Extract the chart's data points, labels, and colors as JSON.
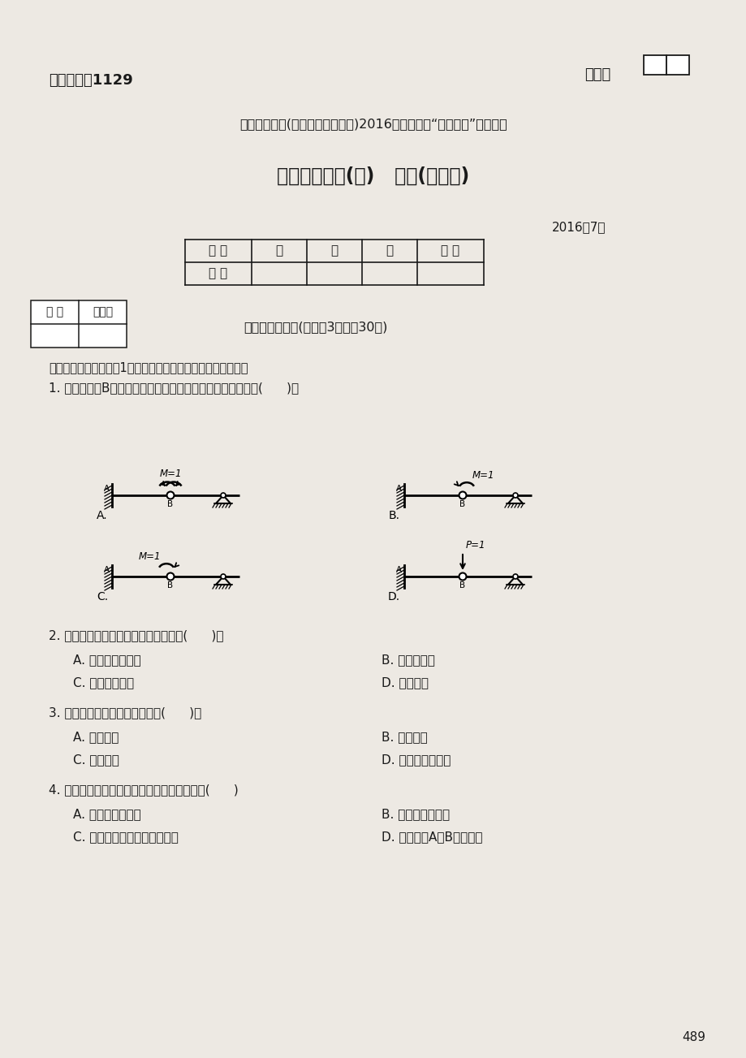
{
  "bg_color": "#ede9e3",
  "text_color": "#1a1a1a",
  "exam_code": "试卷代号：1129",
  "seat_label": "座位号",
  "header_line": "国家开放大学(中央广播电视大学)2016年春季学期“开放本科”期末考试",
  "title": "土木工程力学(本)   试题(半开卷)",
  "date": "2016年7月",
  "table_headers": [
    "题 号",
    "一",
    "二",
    "三",
    "总 分"
  ],
  "table_row": [
    "分 数",
    "",
    "",
    "",
    ""
  ],
  "score_box_labels": [
    "得 分",
    "评卷人"
  ],
  "section1_title": "一、单项选择题(每小题3分，共30分)",
  "instruction": "（在所列备选项中，选1项正确的或最好的作为答案填入括弧）",
  "q1_text": "1. 求图示梁铰B两侧截面的相对转角时，其虚设力状态应取图(      )。",
  "q2_text": "2. 超静定结构的超静定次数等于结构中(      )。",
  "q2_options": [
    "A. 多余约束的数目",
    "B. 支座的数目",
    "C. 支座的链杆数",
    "D. 刚结点数"
  ],
  "q3_text": "3. 超静定结构产生内力的原因有(      )。",
  "q3_options": [
    "A. 荷载作用",
    "B. 支座位移",
    "C. 温度变化",
    "D. 以上原因都可以"
  ],
  "q4_text": "4. 力法典型方程是根据以下哪个条件得到的？(      )",
  "q4_options": [
    "A. 结构的平衡条件",
    "B. 结构的物理条件",
    "C. 多余约束处的位移协调条件",
    "D. 同时满足A、B两个条件"
  ],
  "page_num": "489"
}
